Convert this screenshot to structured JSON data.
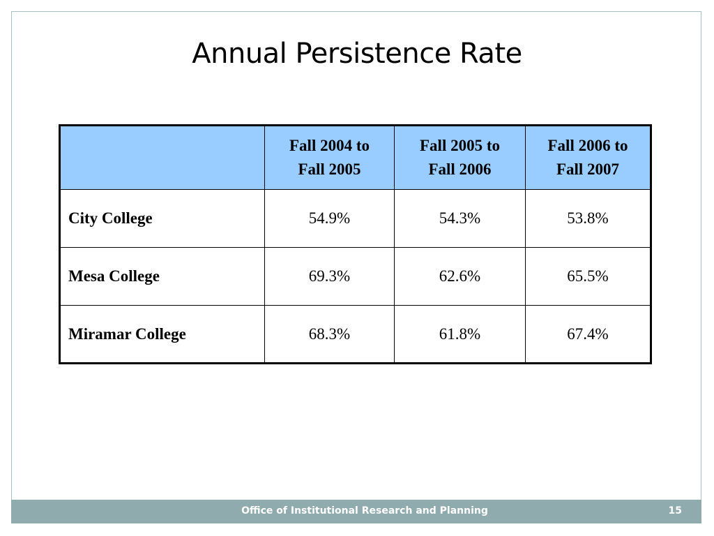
{
  "slide": {
    "title": "Annual Persistence Rate"
  },
  "table": {
    "corner_label": "",
    "columns": [
      {
        "line1": "Fall 2004 to",
        "line2": "Fall 2005"
      },
      {
        "line1": "Fall 2005 to",
        "line2": "Fall 2006"
      },
      {
        "line1": "Fall 2006 to",
        "line2": "Fall 2007"
      }
    ],
    "rows": [
      {
        "label": "City College",
        "values": [
          "54.9%",
          "54.3%",
          "53.8%"
        ]
      },
      {
        "label": "Mesa College",
        "values": [
          "69.3%",
          "62.6%",
          "65.5%"
        ]
      },
      {
        "label": "Miramar College",
        "values": [
          "68.3%",
          "61.8%",
          "67.4%"
        ]
      }
    ],
    "header_color": "#99ccff"
  },
  "footer": {
    "text": "Office of Institutional Research and Planning",
    "page_number": "15",
    "bar_color": "#8fabae"
  }
}
